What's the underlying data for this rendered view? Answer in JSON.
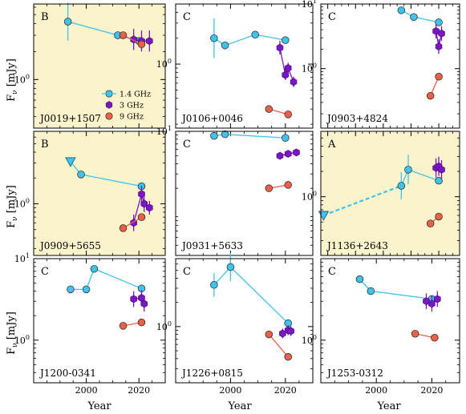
{
  "figure": {
    "ylabel_main": "F",
    "ylabel_sub": "ν",
    "ylabel_unit": " [mJy]",
    "xlabel": "Year",
    "legend": [
      {
        "label": "1.4 GHz",
        "color": "#3fc3ea",
        "marker": "circle"
      },
      {
        "label": "3 GHz",
        "color": "#7b16c4",
        "marker": "hexagon"
      },
      {
        "label": "9 GHz",
        "color": "#ea6147",
        "marker": "circle"
      }
    ],
    "highlight_color": "#fbf3cc"
  },
  "chart_data": [
    {
      "type": "scatter",
      "source": "J0019+1507",
      "class": "B",
      "highlight": true,
      "xlim": [
        1980,
        2030
      ],
      "ylim": [
        0.3,
        6.5
      ],
      "yscale": "log",
      "yticks": [
        {
          "v": 1,
          "label": "10",
          "sup": "0"
        }
      ],
      "xticks": [],
      "series": [
        {
          "name": "1.4 GHz",
          "points": [
            [
              1993,
              4.2,
              0.6
            ],
            [
              2012,
              3.0,
              0
            ],
            [
              2020,
              2.6,
              0
            ]
          ]
        },
        {
          "name": "3 GHz",
          "points": [
            [
              2018,
              2.7,
              0.3
            ],
            [
              2021,
              2.6,
              0.3
            ],
            [
              2024,
              2.6,
              0.3
            ]
          ]
        },
        {
          "name": "9 GHz",
          "points": [
            [
              2014,
              3.0,
              0
            ],
            [
              2021,
              2.4,
              0
            ]
          ]
        }
      ]
    },
    {
      "type": "scatter",
      "source": "J0106+0046",
      "class": "C",
      "highlight": false,
      "xlim": [
        1980,
        2030
      ],
      "ylim": [
        0.18,
        5.0
      ],
      "yscale": "log",
      "yticks": [
        {
          "v": 1,
          "label": "10",
          "sup": "0"
        }
      ],
      "xticks": [],
      "series": [
        {
          "name": "1.4 GHz",
          "points": [
            [
              1994,
              2.0,
              0.7
            ],
            [
              1998,
              1.65,
              0
            ],
            [
              2009,
              2.2,
              0
            ],
            [
              2020,
              1.9,
              0
            ]
          ]
        },
        {
          "name": "3 GHz",
          "points": [
            [
              2018,
              1.55,
              0.2
            ],
            [
              2020,
              0.75,
              0.15
            ],
            [
              2021,
              0.9,
              0.15
            ],
            [
              2023,
              0.62,
              0.15
            ]
          ]
        },
        {
          "name": "9 GHz",
          "points": [
            [
              2014,
              0.3,
              0
            ],
            [
              2021,
              0.26,
              0
            ]
          ]
        }
      ]
    },
    {
      "type": "scatter",
      "source": "J0903+4824",
      "class": "C",
      "highlight": false,
      "xlim": [
        1935,
        2035
      ],
      "ylim": [
        0.12,
        10
      ],
      "yscale": "log",
      "yticks": [
        {
          "v": 1,
          "label": "10",
          "sup": "0"
        },
        {
          "v": 10,
          "label": "10",
          "sup": "1"
        }
      ],
      "xticks": [],
      "series": [
        {
          "name": "1.4 GHz",
          "points": [
            [
              1993,
              8.0,
              0
            ],
            [
              2002,
              6.3,
              0
            ],
            [
              2020,
              5.2,
              0
            ]
          ]
        },
        {
          "name": "3 GHz",
          "points": [
            [
              2018,
              3.8,
              0.3
            ],
            [
              2020,
              2.2,
              0.3
            ],
            [
              2022,
              3.5,
              0.3
            ]
          ]
        },
        {
          "name": "9 GHz",
          "points": [
            [
              2014,
              0.38,
              0
            ],
            [
              2020,
              0.75,
              0
            ]
          ]
        }
      ]
    },
    {
      "type": "scatter",
      "source": "J0909+5655",
      "class": "B",
      "highlight": true,
      "xlim": [
        1980,
        2030
      ],
      "ylim": [
        0.25,
        7.0
      ],
      "yscale": "log",
      "yticks": [
        {
          "v": 1,
          "label": "10",
          "sup": "0"
        }
      ],
      "xticks": [],
      "series": [
        {
          "name": "1.4 GHz",
          "points": [
            [
              1994,
              3.1,
              0
            ],
            [
              1998,
              2.2,
              0
            ],
            [
              2021,
              1.6,
              0
            ]
          ],
          "upper_limit_index": 0
        },
        {
          "name": "3 GHz",
          "points": [
            [
              2018,
              0.6,
              0.25
            ],
            [
              2021,
              1.3,
              0.25
            ],
            [
              2022,
              1.0,
              0.25
            ],
            [
              2024,
              0.9,
              0.2
            ]
          ]
        },
        {
          "name": "9 GHz",
          "points": [
            [
              2014,
              0.52,
              0
            ],
            [
              2021,
              0.7,
              0
            ]
          ]
        }
      ]
    },
    {
      "type": "scatter",
      "source": "J0931+5633",
      "class": "C",
      "highlight": false,
      "xlim": [
        1980,
        2030
      ],
      "ylim": [
        0.3,
        10
      ],
      "yscale": "log",
      "yticks": [
        {
          "v": 10,
          "label": "10",
          "sup": "1"
        }
      ],
      "xticks": [],
      "series": [
        {
          "name": "1.4 GHz",
          "points": [
            [
              1994,
              8.8,
              0
            ],
            [
              1998,
              9.2,
              0
            ],
            [
              2020,
              8.3,
              0
            ]
          ]
        },
        {
          "name": "3 GHz",
          "points": [
            [
              2018,
              5.0,
              0
            ],
            [
              2021,
              5.3,
              0
            ],
            [
              2024,
              5.5,
              0
            ]
          ]
        },
        {
          "name": "9 GHz",
          "points": [
            [
              2014,
              2.0,
              0
            ],
            [
              2021,
              2.2,
              0
            ]
          ]
        }
      ]
    },
    {
      "type": "scatter",
      "source": "J1136+2643",
      "class": "A",
      "highlight": true,
      "xlim": [
        1935,
        2035
      ],
      "ylim": [
        0.2,
        6.0
      ],
      "yscale": "log",
      "yticks": [
        {
          "v": 1,
          "label": "10",
          "sup": "0"
        }
      ],
      "xticks": [],
      "series": [
        {
          "name": "1.4 GHz",
          "points": [
            [
              1937,
              0.6,
              0
            ],
            [
              1993,
              1.35,
              0.45
            ],
            [
              1998,
              2.1,
              0.5
            ],
            [
              2020,
              1.55,
              0
            ]
          ],
          "upper_limit_index": 0,
          "dashed_segments": [
            0
          ]
        },
        {
          "name": "3 GHz",
          "points": [
            [
              2018,
              2.2,
              0.3
            ],
            [
              2020,
              2.3,
              0.3
            ],
            [
              2022,
              2.1,
              0.3
            ]
          ]
        },
        {
          "name": "9 GHz",
          "points": [
            [
              2014,
              0.48,
              0
            ],
            [
              2020,
              0.58,
              0
            ]
          ]
        }
      ]
    },
    {
      "type": "scatter",
      "source": "J1200-0341",
      "class": "C",
      "highlight": false,
      "xlim": [
        1980,
        2030
      ],
      "ylim": [
        0.3,
        10
      ],
      "yscale": "log",
      "yticks": [
        {
          "v": 1,
          "label": "10",
          "sup": "0"
        },
        {
          "v": 10,
          "label": "10",
          "sup": "1"
        }
      ],
      "xticks": [
        {
          "v": 2000,
          "label": "2000"
        },
        {
          "v": 2020,
          "label": "2020"
        }
      ],
      "series": [
        {
          "name": "1.4 GHz",
          "points": [
            [
              1994,
              4.2,
              0
            ],
            [
              2000,
              4.2,
              0
            ],
            [
              2003,
              7.5,
              0
            ],
            [
              2021,
              4.3,
              0
            ]
          ]
        },
        {
          "name": "3 GHz",
          "points": [
            [
              2018,
              3.2,
              0.25
            ],
            [
              2021,
              3.3,
              0.25
            ],
            [
              2022,
              2.8,
              0.25
            ]
          ]
        },
        {
          "name": "9 GHz",
          "points": [
            [
              2014,
              1.5,
              0
            ],
            [
              2021,
              1.65,
              0
            ]
          ]
        }
      ]
    },
    {
      "type": "scatter",
      "source": "J1226+0815",
      "class": "C",
      "highlight": false,
      "xlim": [
        1980,
        2030
      ],
      "ylim": [
        0.2,
        7.0
      ],
      "yscale": "log",
      "yticks": [
        {
          "v": 1,
          "label": "10",
          "sup": "0"
        }
      ],
      "xticks": [
        {
          "v": 2000,
          "label": "2000"
        },
        {
          "v": 2020,
          "label": "2020"
        }
      ],
      "series": [
        {
          "name": "1.4 GHz",
          "points": [
            [
              1994,
              3.3,
              0.4
            ],
            [
              2000,
              5.5,
              0.5
            ],
            [
              2021,
              1.1,
              0
            ]
          ]
        },
        {
          "name": "3 GHz",
          "points": [
            [
              2019,
              0.82,
              0.15
            ],
            [
              2021,
              0.9,
              0.15
            ],
            [
              2022,
              0.88,
              0.15
            ]
          ]
        },
        {
          "name": "9 GHz",
          "points": [
            [
              2014,
              0.8,
              0
            ],
            [
              2021,
              0.42,
              0
            ]
          ]
        }
      ]
    },
    {
      "type": "scatter",
      "source": "J1253-0312",
      "class": "C",
      "highlight": false,
      "xlim": [
        1980,
        2030
      ],
      "ylim": [
        0.3,
        10
      ],
      "yscale": "log",
      "yticks": [
        {
          "v": 1,
          "label": "10",
          "sup": "0"
        }
      ],
      "xticks": [
        {
          "v": 2000,
          "label": "2000"
        },
        {
          "v": 2020,
          "label": "2020"
        }
      ],
      "series": [
        {
          "name": "1.4 GHz",
          "points": [
            [
              1994,
              5.6,
              0
            ],
            [
              1998,
              4.0,
              0
            ],
            [
              2020,
              3.2,
              0
            ]
          ]
        },
        {
          "name": "3 GHz",
          "points": [
            [
              2018,
              3.0,
              0.25
            ],
            [
              2020,
              2.8,
              0.25
            ],
            [
              2022,
              3.2,
              0.25
            ]
          ]
        },
        {
          "name": "9 GHz",
          "points": [
            [
              2014,
              1.2,
              0
            ],
            [
              2021,
              1.07,
              0
            ]
          ]
        }
      ]
    }
  ]
}
